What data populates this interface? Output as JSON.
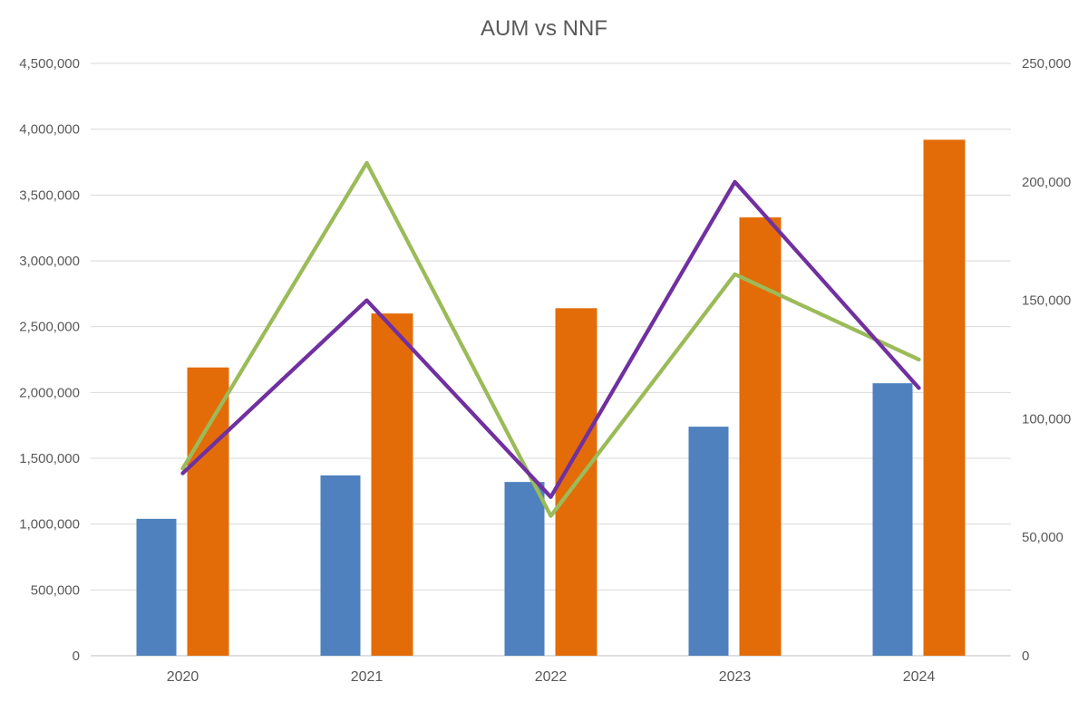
{
  "chart": {
    "title": "AUM vs NNF"
  },
  "chart_data": {
    "type": "combo",
    "title": "AUM vs NNF",
    "categories": [
      "2020",
      "2021",
      "2022",
      "2023",
      "2024"
    ],
    "series": [
      {
        "name": "blue-bar",
        "type": "bar",
        "axis": "left",
        "color": "#4E81BD",
        "values": [
          1040000,
          1370000,
          1320000,
          1740000,
          2070000
        ]
      },
      {
        "name": "orange-bar",
        "type": "bar",
        "axis": "left",
        "color": "#E36C09",
        "values": [
          2190000,
          2600000,
          2640000,
          3330000,
          3920000
        ]
      },
      {
        "name": "green-line",
        "type": "line",
        "axis": "right",
        "color": "#9BBB59",
        "values": [
          79000,
          208000,
          59000,
          161000,
          125000
        ]
      },
      {
        "name": "purple-line",
        "type": "line",
        "axis": "right",
        "color": "#7030A0",
        "values": [
          77000,
          150000,
          67000,
          200000,
          113000
        ]
      }
    ],
    "left_axis": {
      "min": 0,
      "max": 4500000,
      "step": 500000,
      "tick_labels": [
        "0",
        "500,000",
        "1,000,000",
        "1,500,000",
        "2,000,000",
        "2,500,000",
        "3,000,000",
        "3,500,000",
        "4,000,000",
        "4,500,000"
      ]
    },
    "right_axis": {
      "min": 0,
      "max": 250000,
      "step": 50000,
      "tick_labels": [
        "0",
        "50,000",
        "100,000",
        "150,000",
        "200,000",
        "250,000"
      ]
    },
    "grid": true,
    "legend": "none",
    "colors": {
      "grid": "#D9D9D9",
      "axis_line": "#BFBFBF",
      "text": "#595959",
      "title": "#595959",
      "background": "#FFFFFF"
    }
  }
}
